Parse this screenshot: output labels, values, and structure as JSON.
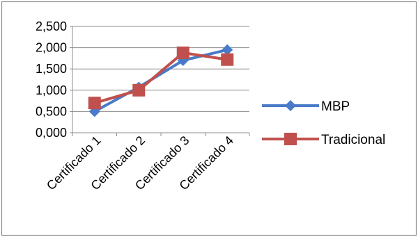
{
  "chart_data": {
    "type": "line",
    "categories": [
      "Certificado 1",
      "Certificado 2",
      "Certificado 3",
      "Certificado 4"
    ],
    "series": [
      {
        "name": "MBP",
        "values": [
          0.5,
          1.07,
          1.7,
          1.95
        ],
        "color": "#4A7BC8",
        "marker": "diamond"
      },
      {
        "name": "Tradicional",
        "values": [
          0.7,
          1.0,
          1.88,
          1.72
        ],
        "color": "#C0504D",
        "marker": "square"
      }
    ],
    "yticks": [
      "0,000",
      "0,500",
      "1,000",
      "1,500",
      "2,000",
      "2,500"
    ],
    "ylim": [
      0,
      2.5
    ],
    "grid": true,
    "legend_position": "right",
    "border_color": "#8c8c8c",
    "grid_color": "#8c8c8c"
  }
}
